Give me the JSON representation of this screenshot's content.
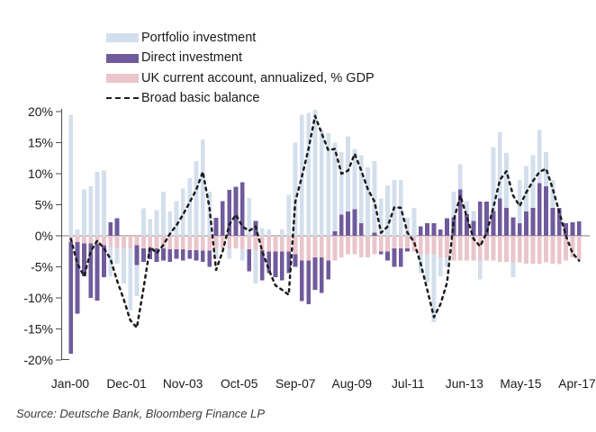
{
  "source": "Source: Deutsche Bank, Bloomberg Finance LP",
  "legend": {
    "items": [
      {
        "label": "Portfolio investment",
        "color": "#d3dfec",
        "swatch": "rect"
      },
      {
        "label": "Direct investment",
        "color": "#6f5b9c",
        "swatch": "rect"
      },
      {
        "label": "UK current account, annualized, % GDP",
        "color": "#eac5cb",
        "swatch": "rect"
      },
      {
        "label": "Broad basic balance",
        "color": "#1c1c1e",
        "swatch": "dashed-line"
      }
    ]
  },
  "chart_data": {
    "type": "bar+line",
    "title": "",
    "xlabel": "",
    "ylabel": "",
    "ylim": [
      -20,
      20
    ],
    "grid": false,
    "legend_position": "top-left",
    "x_tick_labels": [
      "Jan-00",
      "Dec-01",
      "Nov-03",
      "Oct-05",
      "Sep-07",
      "Aug-09",
      "Jul-11",
      "Jun-13",
      "May-15",
      "Apr-17"
    ],
    "y_tick_labels": [
      "20%",
      "15%",
      "10%",
      "5%",
      "0%",
      "-5%",
      "-10%",
      "-15%",
      "-20%"
    ],
    "y_tick_values": [
      20,
      15,
      10,
      5,
      0,
      -5,
      -10,
      -15,
      -20
    ],
    "zero_line_color": "#a9a9a9",
    "axis_color": "#4d4d4d",
    "n_points": 78,
    "series": [
      {
        "name": "Portfolio investment",
        "type": "bar",
        "color": "#d3dfec",
        "values": [
          19.5,
          1,
          7.5,
          8,
          10.3,
          10.5,
          -6.5,
          -4.5,
          -7.7,
          -12,
          -9.7,
          4.4,
          2.7,
          4.1,
          7.1,
          3.9,
          5.6,
          7.6,
          9.3,
          12,
          15.5,
          7.1,
          -3.7,
          1,
          -3.7,
          1.5,
          -4,
          6.1,
          -7.7,
          1.2,
          1,
          -1,
          1,
          6.6,
          15,
          19.5,
          19.8,
          20.3,
          17,
          16.5,
          15,
          13.5,
          16,
          14,
          13,
          11,
          12,
          6,
          8.1,
          9,
          9,
          2.9,
          4.5,
          -6,
          -7.5,
          -13.9,
          -6.5,
          -5,
          7.1,
          11.5,
          5.6,
          4,
          -7,
          4,
          14.3,
          16.7,
          13.3,
          -6.7,
          9,
          11.2,
          13,
          17,
          13.5,
          9,
          4,
          2,
          1,
          0.5
        ]
      },
      {
        "name": "Direct investment",
        "type": "bar",
        "color": "#6f5b9c",
        "values": [
          -19,
          -12.5,
          -6.5,
          -10,
          -10.4,
          -6.7,
          2.2,
          2.8,
          -1,
          -1.5,
          -4.7,
          -4.2,
          -3.8,
          -4.2,
          -4,
          -4.2,
          -3.7,
          -4,
          -3.7,
          -4,
          -4.2,
          -5,
          2.9,
          5.6,
          7.4,
          7.9,
          8.6,
          -5.7,
          2.4,
          -7.2,
          -6,
          -6.7,
          -7.2,
          -6,
          -5,
          -10.5,
          -11,
          -8.7,
          -9.2,
          -7,
          0.7,
          3.4,
          3.9,
          4.3,
          2,
          -1,
          0.5,
          -3,
          -4,
          -5,
          -5,
          -2.5,
          -1.5,
          1.5,
          2,
          2,
          1,
          2.8,
          3,
          7.5,
          3.5,
          2.4,
          5.5,
          5.5,
          4,
          6,
          4.5,
          3,
          2,
          3.9,
          4.5,
          8.5,
          8,
          4.5,
          4.5,
          2,
          2.2,
          2.3
        ]
      },
      {
        "name": "UK current account, annualized, % GDP",
        "type": "bar",
        "color": "#eac5cb",
        "values": [
          -1,
          -1,
          -1.2,
          -1.2,
          -1.3,
          -1.5,
          -1.8,
          -2,
          -2,
          -2,
          -1.5,
          -2,
          -2,
          -2,
          -2,
          -2.2,
          -2.2,
          -2.2,
          -2.3,
          -2.3,
          -2.4,
          -2.4,
          -2,
          -2,
          -2,
          -2,
          -2.2,
          -2.2,
          -2.3,
          -2.3,
          -2.5,
          -2.5,
          -2.5,
          -2.5,
          -3,
          -4,
          -4,
          -3.5,
          -3.5,
          -4,
          -4,
          -3.5,
          -3,
          -3,
          -3.5,
          -3.5,
          -3,
          -2.5,
          -2.5,
          -2,
          -2,
          -2,
          -2.5,
          -3,
          -3,
          -3,
          -3.5,
          -3.5,
          -4,
          -4,
          -4,
          -4,
          -4,
          -4,
          -4,
          -4.2,
          -4.2,
          -4.3,
          -4.3,
          -4.5,
          -4.5,
          -4.5,
          -4.3,
          -4.5,
          -4.6,
          -4,
          -3.5,
          -3.8
        ]
      },
      {
        "name": "Broad basic balance",
        "type": "line",
        "style": "dashed",
        "color": "#1c1c1e",
        "values": [
          -0.5,
          -4.5,
          -6.5,
          -2.5,
          -0.8,
          -2,
          -3.7,
          -7.2,
          -10.2,
          -13.6,
          -14.8,
          -8.5,
          -1.8,
          -2.8,
          -1.5,
          0.3,
          1.7,
          3.4,
          5.4,
          7.4,
          10.3,
          4.5,
          -5.5,
          -2.5,
          1.8,
          3.4,
          1.5,
          0.8,
          1.5,
          -2.5,
          -5.5,
          -8,
          -8.7,
          -9.5,
          5.5,
          9.5,
          14,
          19.3,
          16.5,
          13.8,
          14,
          10,
          10.5,
          13.2,
          10.5,
          7.5,
          5.5,
          0.5,
          1.5,
          4.6,
          4.5,
          0.5,
          -1,
          -4.5,
          -8.7,
          -13.1,
          -11,
          -7.5,
          2.5,
          6.5,
          3,
          -0.5,
          -1.7,
          0.5,
          4.5,
          9,
          10.4,
          6.5,
          4.8,
          7,
          8.8,
          10.3,
          10.8,
          7.6,
          3.8,
          0,
          -2.8,
          -4
        ]
      }
    ]
  }
}
